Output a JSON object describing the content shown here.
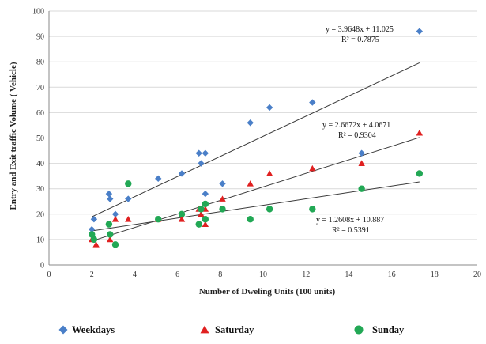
{
  "chart_data": {
    "type": "scatter",
    "title": "",
    "xlabel": "Number of Dweling  Units  (100 units)",
    "ylabel": "Entry and Exit traffic Volume  ( Vehicle)",
    "xlim": [
      0,
      20
    ],
    "ylim": [
      0,
      100
    ],
    "x_ticks": [
      0,
      2,
      4,
      6,
      8,
      10,
      12,
      14,
      16,
      18,
      20
    ],
    "y_ticks": [
      0,
      10,
      20,
      30,
      40,
      50,
      60,
      70,
      80,
      90,
      100
    ],
    "grid": "horizontal",
    "legend_position": "bottom",
    "series": [
      {
        "name": "Weekdays",
        "marker": "diamond",
        "color": "#4a7fc8",
        "points": [
          [
            2.0,
            14
          ],
          [
            2.1,
            18
          ],
          [
            2.8,
            28
          ],
          [
            2.85,
            26
          ],
          [
            3.1,
            20
          ],
          [
            3.7,
            26
          ],
          [
            5.1,
            34
          ],
          [
            6.2,
            36
          ],
          [
            7.0,
            44
          ],
          [
            7.1,
            40
          ],
          [
            7.3,
            44
          ],
          [
            7.3,
            28
          ],
          [
            8.1,
            32
          ],
          [
            9.4,
            56
          ],
          [
            10.3,
            62
          ],
          [
            12.3,
            64
          ],
          [
            14.6,
            44
          ],
          [
            17.3,
            92
          ]
        ],
        "trendline": {
          "slope": 3.9648,
          "intercept": 11.025,
          "equation": "y = 3.9648x + 11.025",
          "r2_label": "R² = 0.7875"
        }
      },
      {
        "name": "Saturday",
        "marker": "triangle",
        "color": "#e02020",
        "points": [
          [
            2.0,
            10
          ],
          [
            2.2,
            8
          ],
          [
            2.85,
            10
          ],
          [
            3.1,
            18
          ],
          [
            3.7,
            18
          ],
          [
            5.1,
            18
          ],
          [
            6.2,
            18
          ],
          [
            7.0,
            22
          ],
          [
            7.1,
            20
          ],
          [
            7.3,
            16
          ],
          [
            7.3,
            22
          ],
          [
            8.1,
            26
          ],
          [
            9.4,
            32
          ],
          [
            10.3,
            36
          ],
          [
            12.3,
            38
          ],
          [
            14.6,
            40
          ],
          [
            17.3,
            52
          ]
        ],
        "trendline": {
          "slope": 2.6672,
          "intercept": 4.0671,
          "equation": "y = 2.6672x + 4.0671",
          "r2_label": "R² = 0.9304"
        }
      },
      {
        "name": "Sunday",
        "marker": "circle",
        "color": "#22a855",
        "points": [
          [
            2.0,
            12
          ],
          [
            2.1,
            10
          ],
          [
            2.8,
            16
          ],
          [
            2.85,
            12
          ],
          [
            3.1,
            8
          ],
          [
            3.7,
            32
          ],
          [
            5.1,
            18
          ],
          [
            6.2,
            20
          ],
          [
            7.0,
            16
          ],
          [
            7.1,
            22
          ],
          [
            7.3,
            24
          ],
          [
            7.3,
            18
          ],
          [
            8.1,
            22
          ],
          [
            9.4,
            18
          ],
          [
            10.3,
            22
          ],
          [
            12.3,
            22
          ],
          [
            14.6,
            30
          ],
          [
            17.3,
            36
          ]
        ],
        "trendline": {
          "slope": 1.2608,
          "intercept": 10.887,
          "equation": "y = 1.2608x + 10.887",
          "r2_label": "R² = 0.5391"
        }
      }
    ]
  }
}
